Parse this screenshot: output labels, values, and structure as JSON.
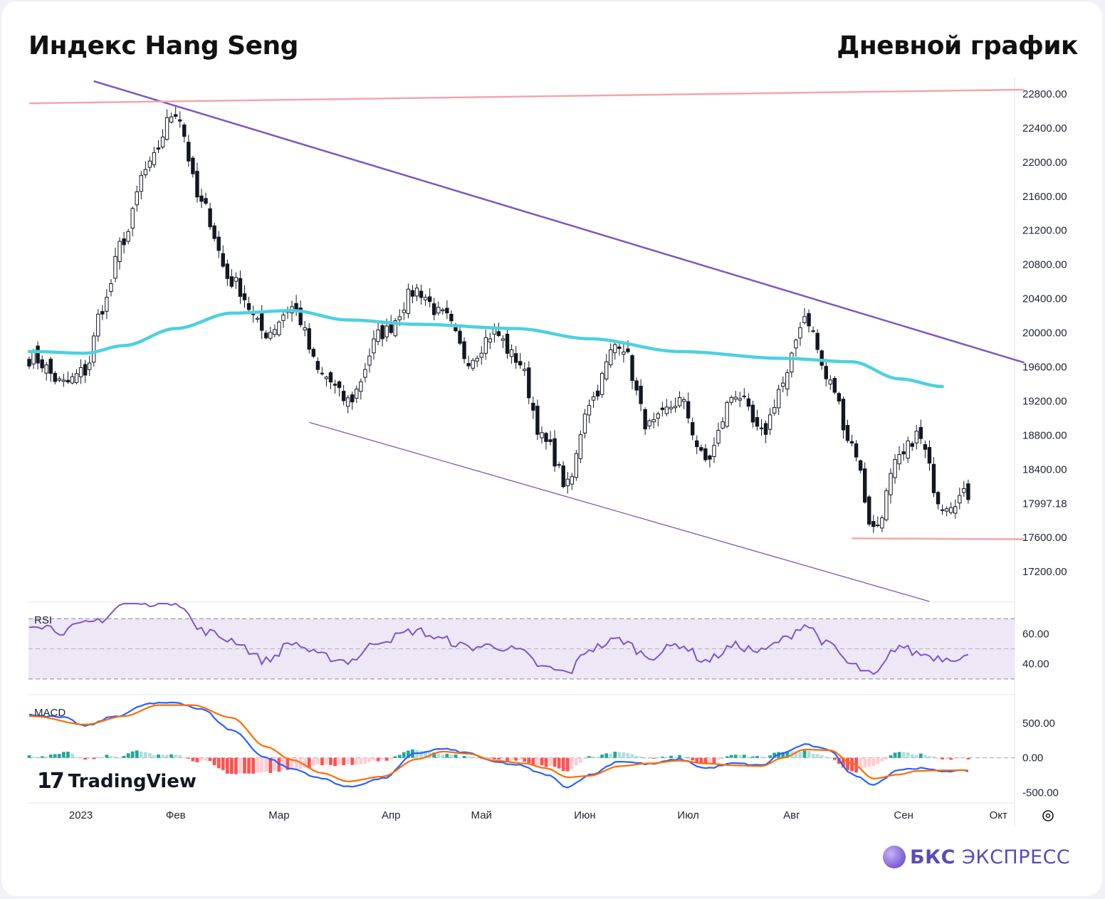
{
  "header": {
    "title": "Индекс Hang Seng",
    "subtitle": "Дневной график"
  },
  "watermark": {
    "text": "TradingView",
    "logo": "tradingview-logo"
  },
  "brand": {
    "bold": "БКС",
    "rest": " ЭКСПРЕСС",
    "logo": "bcs-sphere-logo"
  },
  "colors": {
    "background": "#ffffff",
    "candle_up": "#ffffff",
    "candle_down": "#131722",
    "ma": "#4dd0e1",
    "channel": "#7e57c2",
    "resistance": "#f4a6ad",
    "rsi_line": "#7e57c2",
    "rsi_band": "#ede7f6",
    "macd_line": "#2962ff",
    "signal_line": "#ff6d00",
    "hist_pos_strong": "#26a69a",
    "hist_pos_weak": "#b2dfdb",
    "hist_neg_strong": "#ff5252",
    "hist_neg_weak": "#ffcdd2"
  },
  "chart_data": [
    {
      "type": "candlestick",
      "pane": "price",
      "y_ticks": [
        "22800.00",
        "22400.00",
        "22000.00",
        "21600.00",
        "21200.00",
        "20800.00",
        "20400.00",
        "20000.00",
        "19600.00",
        "19200.00",
        "18800.00",
        "18400.00",
        "17997.18",
        "17600.00",
        "17200.00"
      ],
      "ylim": [
        16850,
        23000
      ],
      "last_price": "17997.18",
      "x_labels": [
        "2023",
        "Фев",
        "Мар",
        "Апр",
        "Май",
        "Июн",
        "Июл",
        "Авг",
        "Сен",
        "Окт"
      ],
      "close_anchors": [
        [
          1,
          19700
        ],
        [
          8,
          19400
        ],
        [
          13,
          19550
        ],
        [
          17,
          20300
        ],
        [
          22,
          21100
        ],
        [
          27,
          21900
        ],
        [
          34,
          22600
        ],
        [
          40,
          21500
        ],
        [
          47,
          20600
        ],
        [
          55,
          20000
        ],
        [
          61,
          20300
        ],
        [
          68,
          19500
        ],
        [
          74,
          19200
        ],
        [
          82,
          20000
        ],
        [
          90,
          20500
        ],
        [
          96,
          20200
        ],
        [
          102,
          19700
        ],
        [
          108,
          20000
        ],
        [
          113,
          19700
        ],
        [
          120,
          18700
        ],
        [
          125,
          18200
        ],
        [
          130,
          19200
        ],
        [
          137,
          19900
        ],
        [
          144,
          18900
        ],
        [
          151,
          19200
        ],
        [
          157,
          18500
        ],
        [
          164,
          19300
        ],
        [
          170,
          18800
        ],
        [
          175,
          19400
        ],
        [
          180,
          20200
        ],
        [
          186,
          19400
        ],
        [
          191,
          18700
        ],
        [
          196,
          17700
        ],
        [
          202,
          18500
        ],
        [
          206,
          18800
        ],
        [
          212,
          18000
        ],
        [
          218,
          18100
        ]
      ],
      "ma_anchors": [
        [
          1,
          19780
        ],
        [
          13,
          19760
        ],
        [
          22,
          19850
        ],
        [
          34,
          20050
        ],
        [
          47,
          20230
        ],
        [
          61,
          20260
        ],
        [
          74,
          20150
        ],
        [
          90,
          20100
        ],
        [
          113,
          20050
        ],
        [
          130,
          19930
        ],
        [
          151,
          19780
        ],
        [
          175,
          19700
        ],
        [
          191,
          19660
        ],
        [
          202,
          19460
        ],
        [
          212,
          19370
        ]
      ],
      "lines": [
        {
          "name": "upper-channel",
          "from": [
            15,
            22950
          ],
          "to": [
            231,
            19650
          ]
        },
        {
          "name": "lower-channel",
          "from": [
            65,
            18950
          ],
          "to": [
            209,
            16850
          ]
        },
        {
          "name": "resistance",
          "from": [
            0,
            22690
          ],
          "to": [
            231,
            22850
          ]
        },
        {
          "name": "support",
          "from": [
            191,
            17590
          ],
          "to": [
            231,
            17580
          ]
        }
      ]
    },
    {
      "type": "line",
      "pane": "RSI",
      "label": "RSI",
      "y_ticks": [
        "60.00",
        "40.00"
      ],
      "ylim": [
        20,
        80
      ],
      "band": [
        30,
        70
      ],
      "anchors": [
        [
          1,
          67
        ],
        [
          8,
          62
        ],
        [
          13,
          66
        ],
        [
          17,
          70
        ],
        [
          22,
          80
        ],
        [
          34,
          82
        ],
        [
          40,
          62
        ],
        [
          47,
          56
        ],
        [
          55,
          42
        ],
        [
          61,
          54
        ],
        [
          68,
          45
        ],
        [
          74,
          42
        ],
        [
          82,
          56
        ],
        [
          90,
          62
        ],
        [
          96,
          56
        ],
        [
          102,
          51
        ],
        [
          108,
          52
        ],
        [
          113,
          49
        ],
        [
          120,
          37
        ],
        [
          125,
          34
        ],
        [
          130,
          50
        ],
        [
          137,
          56
        ],
        [
          144,
          45
        ],
        [
          151,
          53
        ],
        [
          157,
          42
        ],
        [
          164,
          52
        ],
        [
          170,
          48
        ],
        [
          175,
          56
        ],
        [
          180,
          66
        ],
        [
          186,
          52
        ],
        [
          191,
          39
        ],
        [
          196,
          32
        ],
        [
          202,
          52
        ],
        [
          206,
          47
        ],
        [
          212,
          44
        ],
        [
          218,
          45
        ]
      ]
    },
    {
      "type": "histogram+line",
      "pane": "MACD",
      "label": "MACD",
      "y_ticks": [
        "500.00",
        "0.00",
        "-500.00"
      ],
      "ylim": [
        -650,
        900
      ],
      "macd_anchors": [
        [
          1,
          620
        ],
        [
          8,
          580
        ],
        [
          13,
          460
        ],
        [
          20,
          600
        ],
        [
          28,
          780
        ],
        [
          34,
          800
        ],
        [
          40,
          700
        ],
        [
          47,
          400
        ],
        [
          55,
          0
        ],
        [
          61,
          -160
        ],
        [
          68,
          -300
        ],
        [
          74,
          -420
        ],
        [
          82,
          -300
        ],
        [
          90,
          70
        ],
        [
          96,
          130
        ],
        [
          102,
          70
        ],
        [
          108,
          -60
        ],
        [
          113,
          -100
        ],
        [
          120,
          -240
        ],
        [
          125,
          -420
        ],
        [
          130,
          -250
        ],
        [
          137,
          -50
        ],
        [
          144,
          -90
        ],
        [
          151,
          -20
        ],
        [
          157,
          -150
        ],
        [
          164,
          -80
        ],
        [
          170,
          -110
        ],
        [
          175,
          70
        ],
        [
          180,
          190
        ],
        [
          186,
          110
        ],
        [
          191,
          -240
        ],
        [
          196,
          -380
        ],
        [
          202,
          -170
        ],
        [
          206,
          -150
        ],
        [
          212,
          -190
        ],
        [
          218,
          -190
        ]
      ],
      "signal_anchors": [
        [
          1,
          600
        ],
        [
          13,
          480
        ],
        [
          22,
          600
        ],
        [
          30,
          760
        ],
        [
          38,
          760
        ],
        [
          47,
          580
        ],
        [
          55,
          160
        ],
        [
          61,
          -30
        ],
        [
          68,
          -220
        ],
        [
          74,
          -340
        ],
        [
          82,
          -270
        ],
        [
          90,
          -20
        ],
        [
          96,
          90
        ],
        [
          102,
          60
        ],
        [
          108,
          -40
        ],
        [
          115,
          -80
        ],
        [
          120,
          -150
        ],
        [
          125,
          -280
        ],
        [
          130,
          -260
        ],
        [
          137,
          -120
        ],
        [
          144,
          -80
        ],
        [
          151,
          -40
        ],
        [
          157,
          -80
        ],
        [
          164,
          -110
        ],
        [
          170,
          -120
        ],
        [
          175,
          0
        ],
        [
          180,
          120
        ],
        [
          186,
          110
        ],
        [
          191,
          -80
        ],
        [
          196,
          -300
        ],
        [
          202,
          -240
        ],
        [
          206,
          -190
        ],
        [
          212,
          -180
        ],
        [
          218,
          -180
        ]
      ]
    }
  ]
}
